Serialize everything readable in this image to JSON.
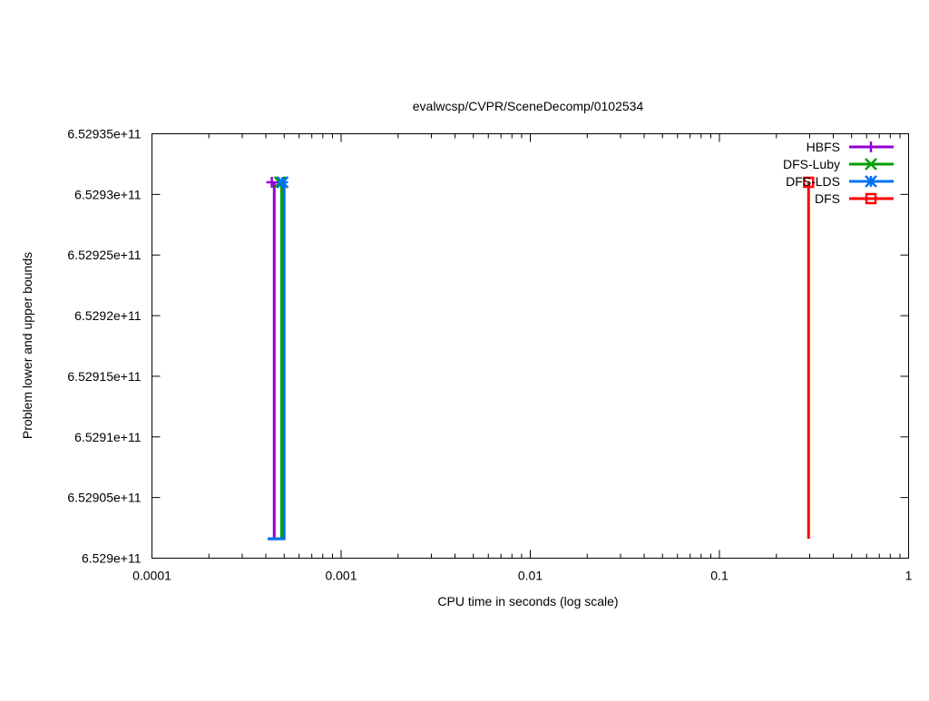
{
  "chart_data": {
    "type": "line",
    "title": "evalwcsp/CVPR/SceneDecomp/0102534",
    "xlabel": "CPU time in seconds (log scale)",
    "ylabel": "Problem lower and upper bounds",
    "xscale": "log",
    "xlim": [
      0.0001,
      1
    ],
    "ylim": [
      652900000000,
      652935000000
    ],
    "xticks": [
      {
        "v": 0.0001,
        "label": "0.0001"
      },
      {
        "v": 0.001,
        "label": "0.001"
      },
      {
        "v": 0.01,
        "label": "0.01"
      },
      {
        "v": 0.1,
        "label": "0.1"
      },
      {
        "v": 1,
        "label": "1"
      }
    ],
    "yticks": [
      {
        "v": 652900000000,
        "label": "6.529e+11"
      },
      {
        "v": 652905000000,
        "label": "6.52905e+11"
      },
      {
        "v": 652910000000,
        "label": "6.5291e+11"
      },
      {
        "v": 652915000000,
        "label": "6.52915e+11"
      },
      {
        "v": 652920000000,
        "label": "6.5292e+11"
      },
      {
        "v": 652925000000,
        "label": "6.52925e+11"
      },
      {
        "v": 652930000000,
        "label": "6.5293e+11"
      },
      {
        "v": 652935000000,
        "label": "6.52935e+11"
      }
    ],
    "grid": false,
    "legend_position": "top-right",
    "series": [
      {
        "name": "HBFS",
        "color": "#9400d3",
        "marker": "plus",
        "points": [
          [
            0.00041,
            652901600000
          ],
          [
            0.000443,
            652901600000
          ],
          [
            0.000443,
            652931000000
          ]
        ],
        "upper": [
          0.00043,
          652931000000
        ]
      },
      {
        "name": "DFS-Luby",
        "color": "#009e00",
        "marker": "cross",
        "points": [
          [
            0.00041,
            652901600000
          ],
          [
            0.000485,
            652901600000
          ],
          [
            0.000485,
            652931000000
          ]
        ],
        "upper": [
          0.000475,
          652931000000
        ]
      },
      {
        "name": "DFS-LDS",
        "color": "#0072f2",
        "marker": "star",
        "points": [
          [
            0.00041,
            652901600000
          ],
          [
            0.0005,
            652901600000
          ],
          [
            0.0005,
            652931000000
          ]
        ],
        "upper": [
          0.00049,
          652931000000
        ]
      },
      {
        "name": "DFS",
        "color": "#ff0000",
        "marker": "box",
        "points": [
          [
            0.296,
            652901600000
          ],
          [
            0.296,
            652931000000
          ]
        ],
        "upper": [
          0.296,
          652931000000
        ]
      }
    ]
  }
}
